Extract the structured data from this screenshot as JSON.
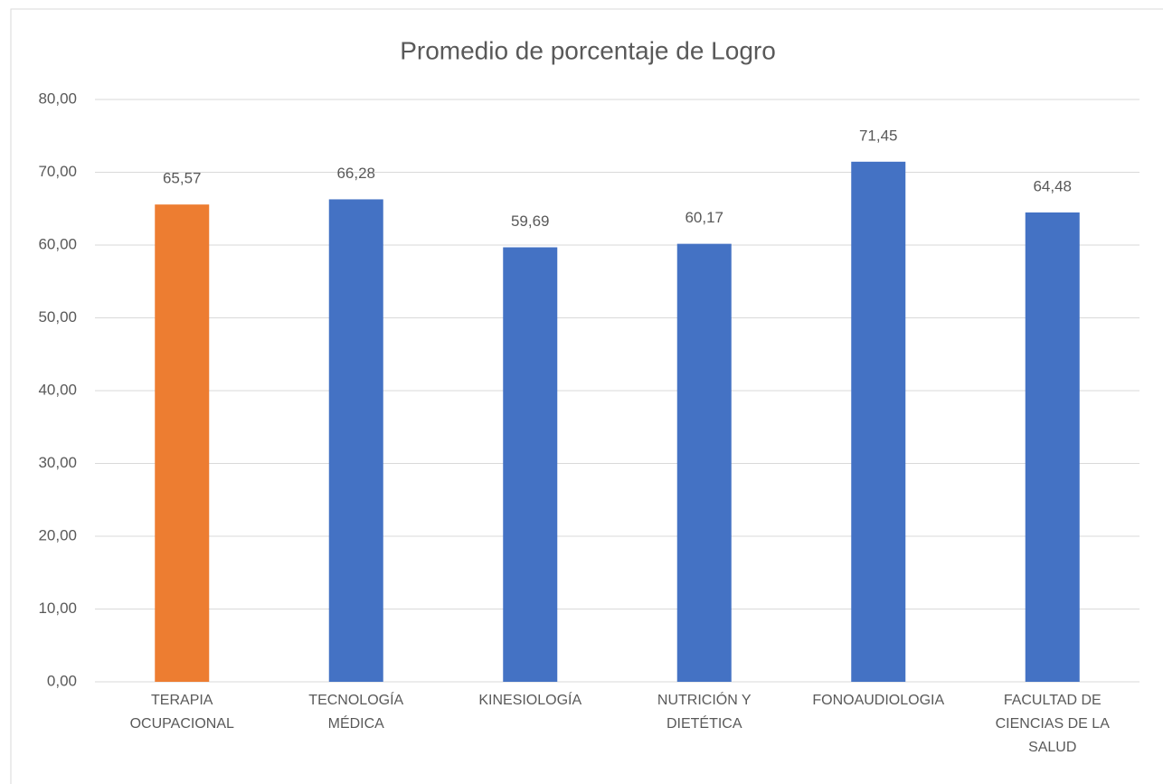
{
  "chart_data": {
    "type": "bar",
    "title": "Promedio de porcentaje de Logro",
    "categories": [
      "TERAPIA OCUPACIONAL",
      "TECNOLOGÍA MÉDICA",
      "KINESIOLOGÍA",
      "NUTRICIÓN Y DIETÉTICA",
      "FONOAUDIOLOGIA",
      "FACULTAD DE CIENCIAS DE LA SALUD"
    ],
    "values": [
      65.57,
      66.28,
      59.69,
      60.17,
      71.45,
      64.48
    ],
    "value_labels": [
      "65,57",
      "66,28",
      "59,69",
      "60,17",
      "71,45",
      "64,48"
    ],
    "colors": [
      "#ed7d31",
      "#4472c4",
      "#4472c4",
      "#4472c4",
      "#4472c4",
      "#4472c4"
    ],
    "ylim": [
      0,
      80
    ],
    "yticks": [
      {
        "value": 0,
        "label": "0,00"
      },
      {
        "value": 10,
        "label": "10,00"
      },
      {
        "value": 20,
        "label": "20,00"
      },
      {
        "value": 30,
        "label": "30,00"
      },
      {
        "value": 40,
        "label": "40,00"
      },
      {
        "value": 50,
        "label": "50,00"
      },
      {
        "value": 60,
        "label": "60,00"
      },
      {
        "value": 70,
        "label": "70,00"
      },
      {
        "value": 80,
        "label": "80,00"
      }
    ],
    "grid": true
  }
}
